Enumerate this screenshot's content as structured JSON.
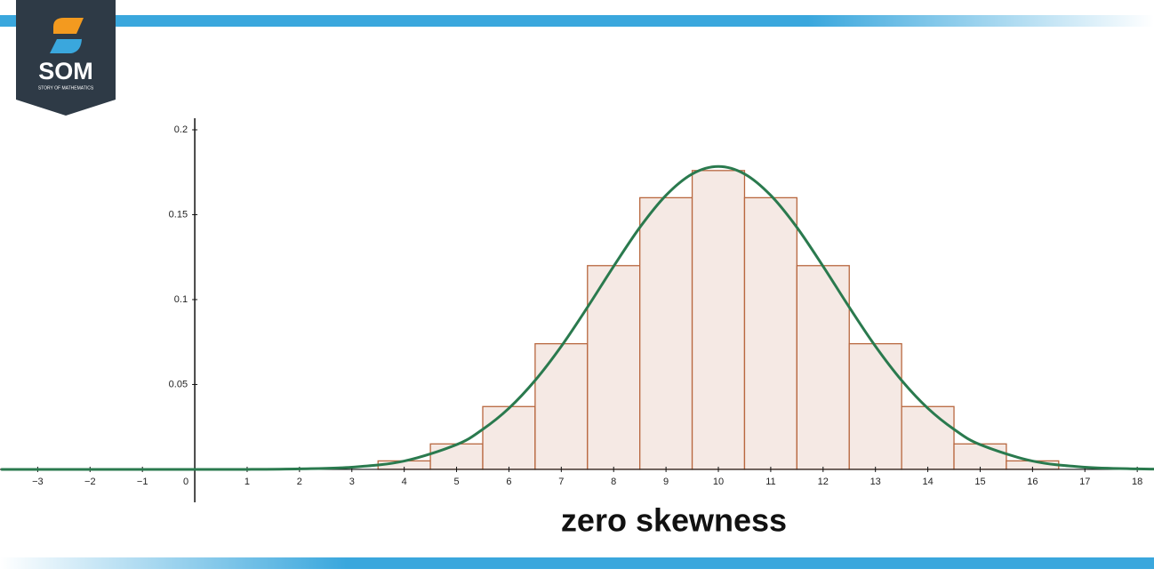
{
  "logo": {
    "name": "SOM",
    "tagline": "STORY OF MATHEMATICS"
  },
  "chart_data": {
    "type": "histogram",
    "title": "zero skewness",
    "bins": [
      3.5,
      4.5,
      5.5,
      6.5,
      7.5,
      8.5,
      9.5,
      10.5,
      11.5,
      12.5,
      13.5,
      14.5,
      15.5,
      16.5
    ],
    "values": [
      0.005,
      0.015,
      0.037,
      0.074,
      0.12,
      0.16,
      0.176,
      0.16,
      0.12,
      0.074,
      0.037,
      0.015,
      0.005
    ],
    "color": "#f5e9e4",
    "edge_color": "#b8673f",
    "curve": {
      "color": "#2a7a4e",
      "x": [
        -3.7,
        0,
        1,
        2,
        3,
        4,
        5,
        5.5,
        6,
        6.5,
        7,
        7.5,
        8,
        8.5,
        9,
        9.5,
        10,
        10.5,
        11,
        11.5,
        12,
        12.5,
        13,
        13.5,
        14,
        14.5,
        15,
        16,
        17,
        18,
        18.35
      ],
      "values": [
        0,
        0,
        0,
        0.0003,
        0.0013,
        0.0049,
        0.0146,
        0.0236,
        0.036,
        0.0524,
        0.0725,
        0.0955,
        0.1196,
        0.1425,
        0.1614,
        0.174,
        0.1784,
        0.174,
        0.1614,
        0.1425,
        0.1196,
        0.0955,
        0.0725,
        0.0524,
        0.036,
        0.0236,
        0.0146,
        0.0049,
        0.0013,
        0.0003,
        0.0002
      ]
    },
    "xlim": [
      -3.72,
      18.32
    ],
    "ylim": [
      -0.0194,
      0.2068
    ],
    "xticks": [
      {
        "value": -3,
        "label": "−3"
      },
      {
        "value": -2,
        "label": "−2"
      },
      {
        "value": -1,
        "label": "−1"
      },
      0,
      1,
      2,
      3,
      4,
      5,
      6,
      7,
      8,
      9,
      10,
      11,
      12,
      13,
      14,
      15,
      16,
      17,
      18
    ],
    "yticks": [
      0.05,
      0.1,
      0.15,
      0.2
    ],
    "grid": false
  }
}
